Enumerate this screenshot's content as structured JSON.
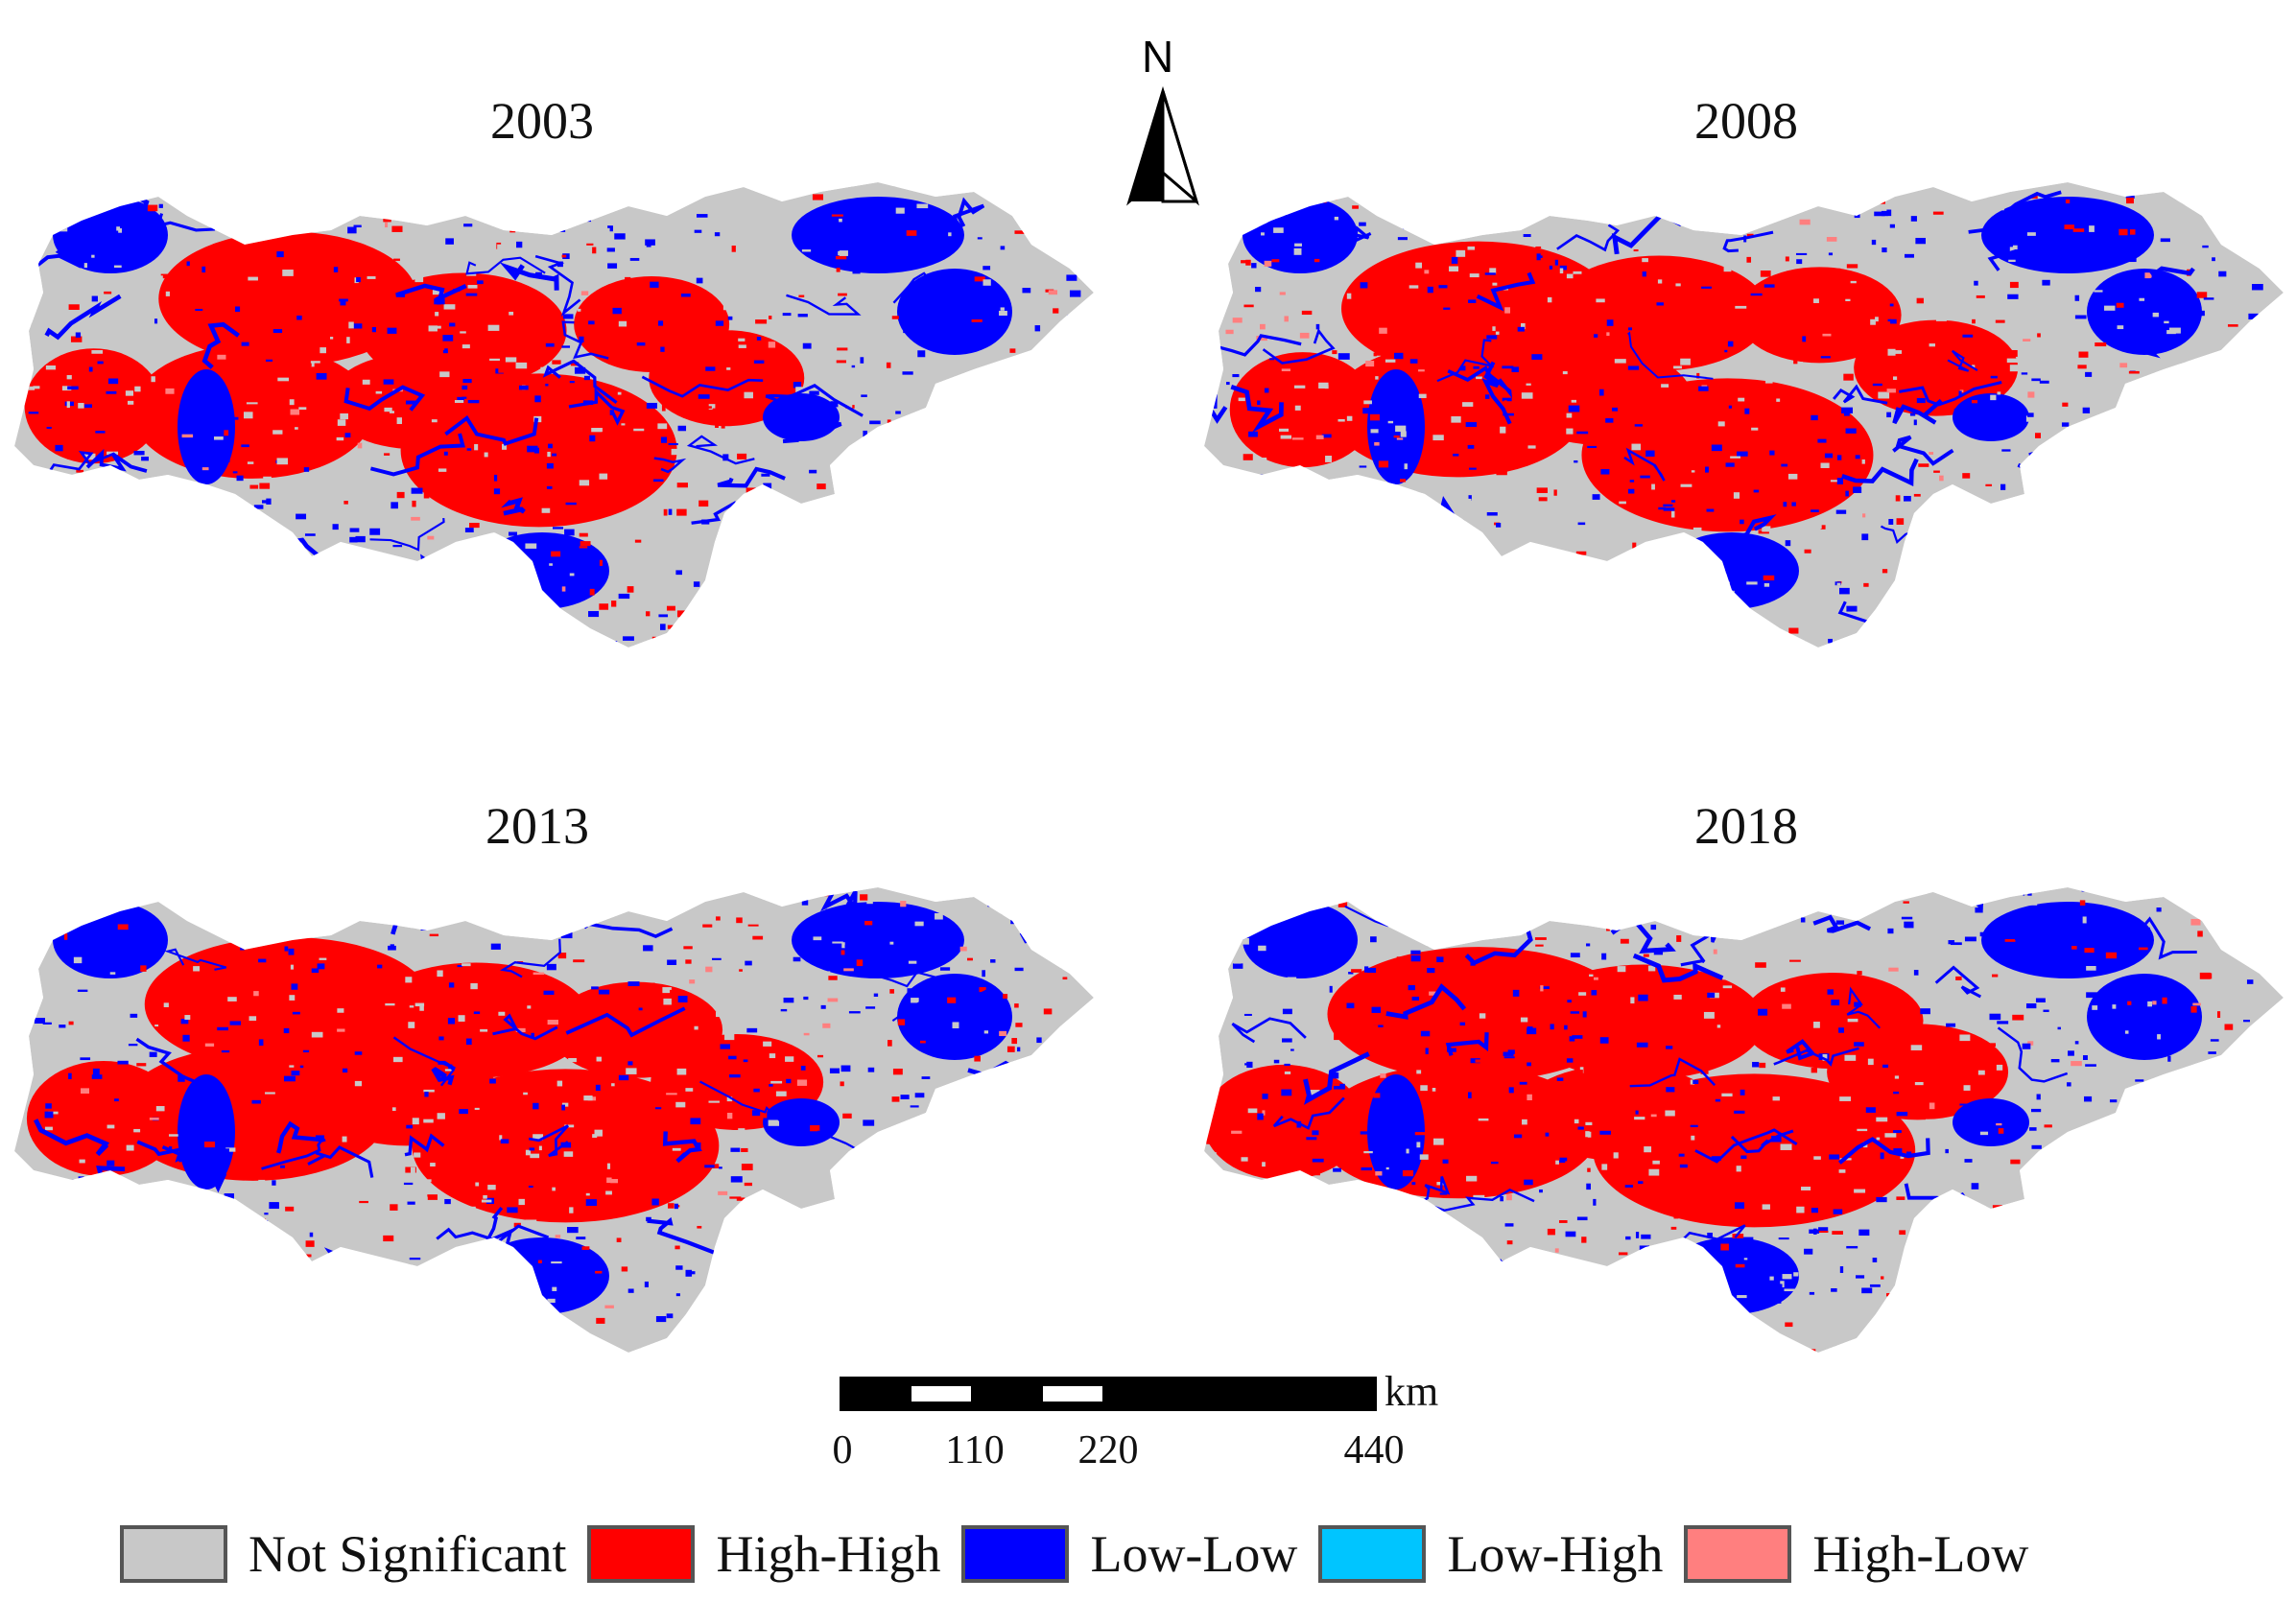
{
  "panels": [
    {
      "year": "2003"
    },
    {
      "year": "2008"
    },
    {
      "year": "2013"
    },
    {
      "year": "2018"
    }
  ],
  "north_arrow": {
    "label": "N"
  },
  "scale_bar": {
    "unit": "km",
    "ticks": [
      "0",
      "110",
      "220",
      "440"
    ]
  },
  "legend": [
    {
      "label": "Not Significant",
      "color": "#c8c8c8"
    },
    {
      "label": "High-High",
      "color": "#ff0000"
    },
    {
      "label": "Low-Low",
      "color": "#0000ff"
    },
    {
      "label": "Low-High",
      "color": "#00c5ff"
    },
    {
      "label": "High-Low",
      "color": "#ff7f7f"
    }
  ]
}
